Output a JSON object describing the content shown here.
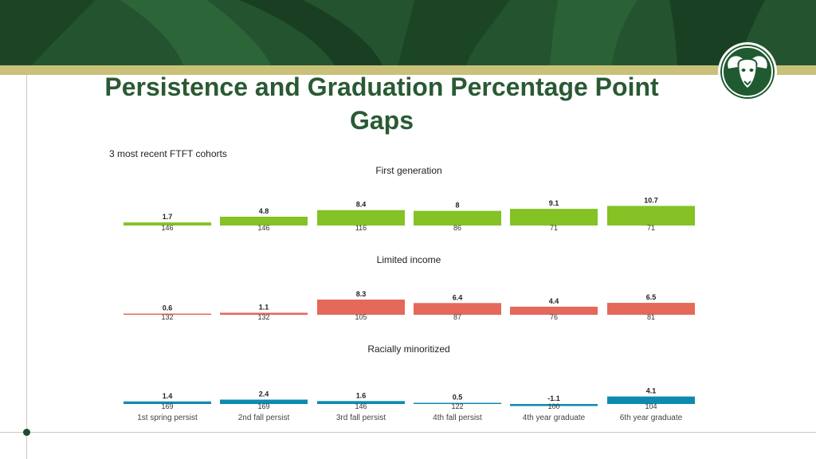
{
  "slide": {
    "title": "Persistence and Graduation Percentage Point Gaps",
    "subtitle": "3 most recent FTFT cohorts",
    "logo_icon": "ram-head-icon",
    "brand_colors": {
      "green": "#24532f",
      "gold": "#c9c17a"
    }
  },
  "chart_data": {
    "type": "bar",
    "title": "3 most recent FTFT cohorts",
    "categories": [
      "1st spring persist",
      "2nd fall persist",
      "3rd fall persist",
      "4th fall persist",
      "4th year graduate",
      "6th year graduate"
    ],
    "panels": [
      {
        "name": "First generation",
        "color": "#84c225",
        "values": [
          1.7,
          4.8,
          8.4,
          8,
          9.1,
          10.7
        ],
        "value_labels": [
          "1.7",
          "4.8",
          "8.4",
          "8",
          "9.1",
          "10.7"
        ],
        "counts": [
          "146",
          "146",
          "116",
          "86",
          "71",
          "71"
        ]
      },
      {
        "name": "Limited income",
        "color": "#e4695a",
        "values": [
          0.6,
          1.1,
          8.3,
          6.4,
          4.4,
          6.5
        ],
        "value_labels": [
          "0.6",
          "1.1",
          "8.3",
          "6.4",
          "4.4",
          "6.5"
        ],
        "counts": [
          "132",
          "132",
          "105",
          "87",
          "76",
          "81"
        ]
      },
      {
        "name": "Racially minoritized",
        "color": "#0e8ab0",
        "values": [
          1.4,
          2.4,
          1.6,
          0.5,
          -1.1,
          4.1
        ],
        "value_labels": [
          "1.4",
          "2.4",
          "1.6",
          "0.5",
          "-1.1",
          "4.1"
        ],
        "counts": [
          "169",
          "169",
          "146",
          "122",
          "100",
          "104"
        ]
      }
    ],
    "ylim": [
      -2,
      11
    ],
    "xlabel": "",
    "ylabel": ""
  }
}
